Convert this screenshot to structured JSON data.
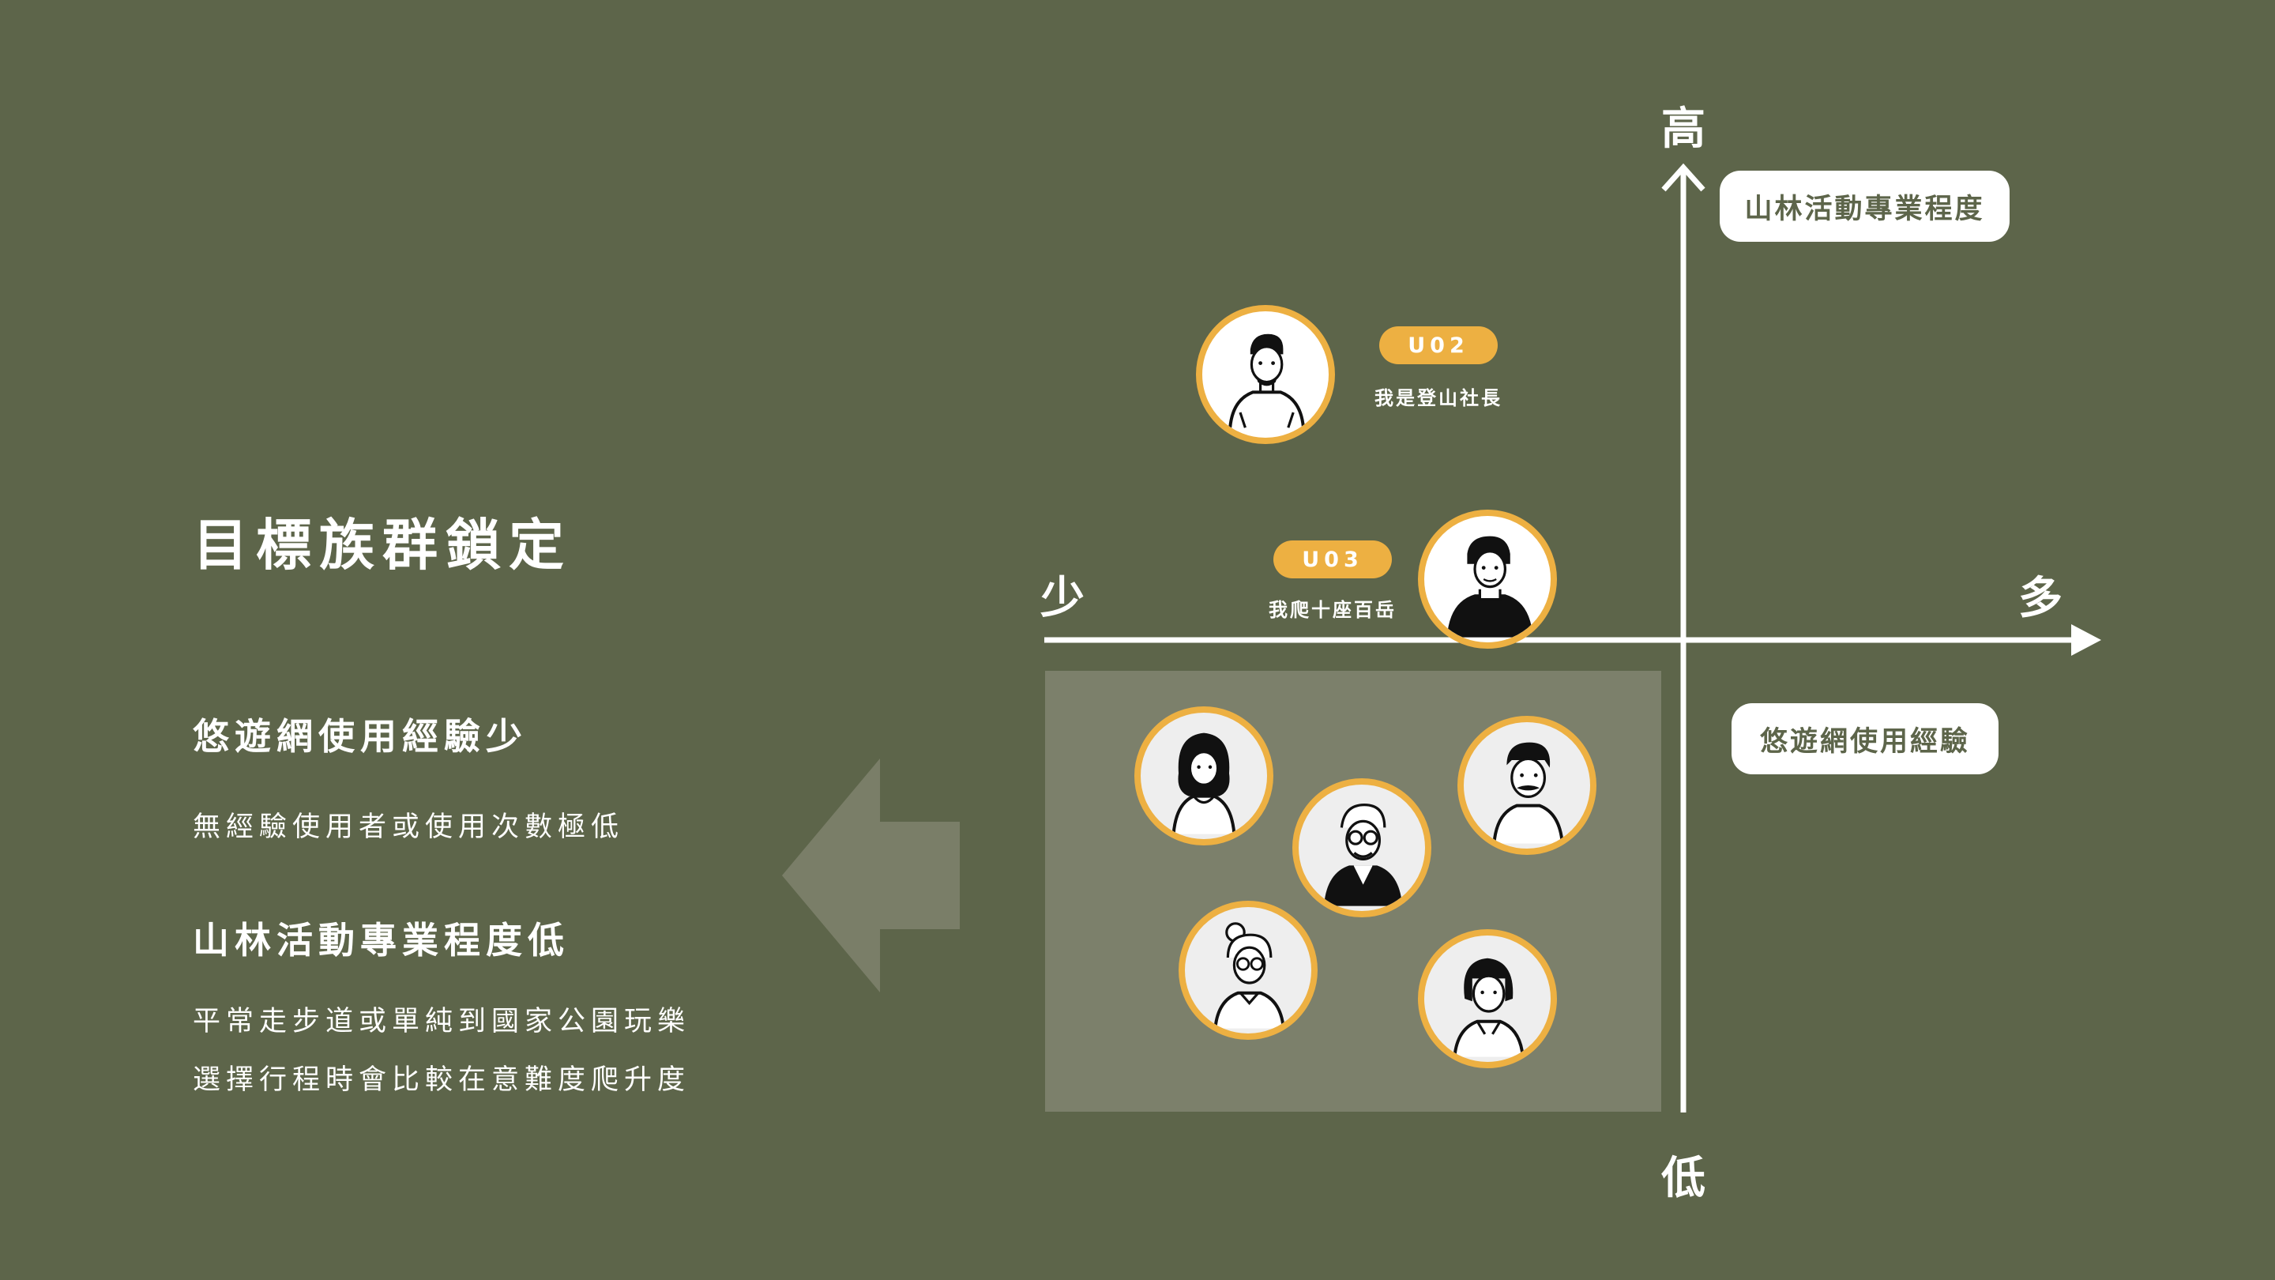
{
  "left": {
    "title": "目標族群鎖定",
    "section1": {
      "heading": "悠遊網使用經驗少",
      "lines": [
        "無經驗使用者或使用次數極低"
      ]
    },
    "section2": {
      "heading": "山林活動專業程度低",
      "lines": [
        "平常走步道或單純到國家公園玩樂",
        "選擇行程時會比較在意難度爬升度"
      ]
    }
  },
  "axes": {
    "y_top": "高",
    "y_bottom": "低",
    "x_left": "少",
    "x_right": "多",
    "y_label": "山林活動專業程度",
    "x_label": "悠遊網使用經驗"
  },
  "personas": [
    {
      "id": "U02",
      "caption": "我是登山社長"
    },
    {
      "id": "U03",
      "caption": "我爬十座百岳"
    }
  ],
  "colors": {
    "background": "#5d654a",
    "accent": "#edb042",
    "target_box": "#7c806b",
    "arrow": "#7a7e68"
  }
}
